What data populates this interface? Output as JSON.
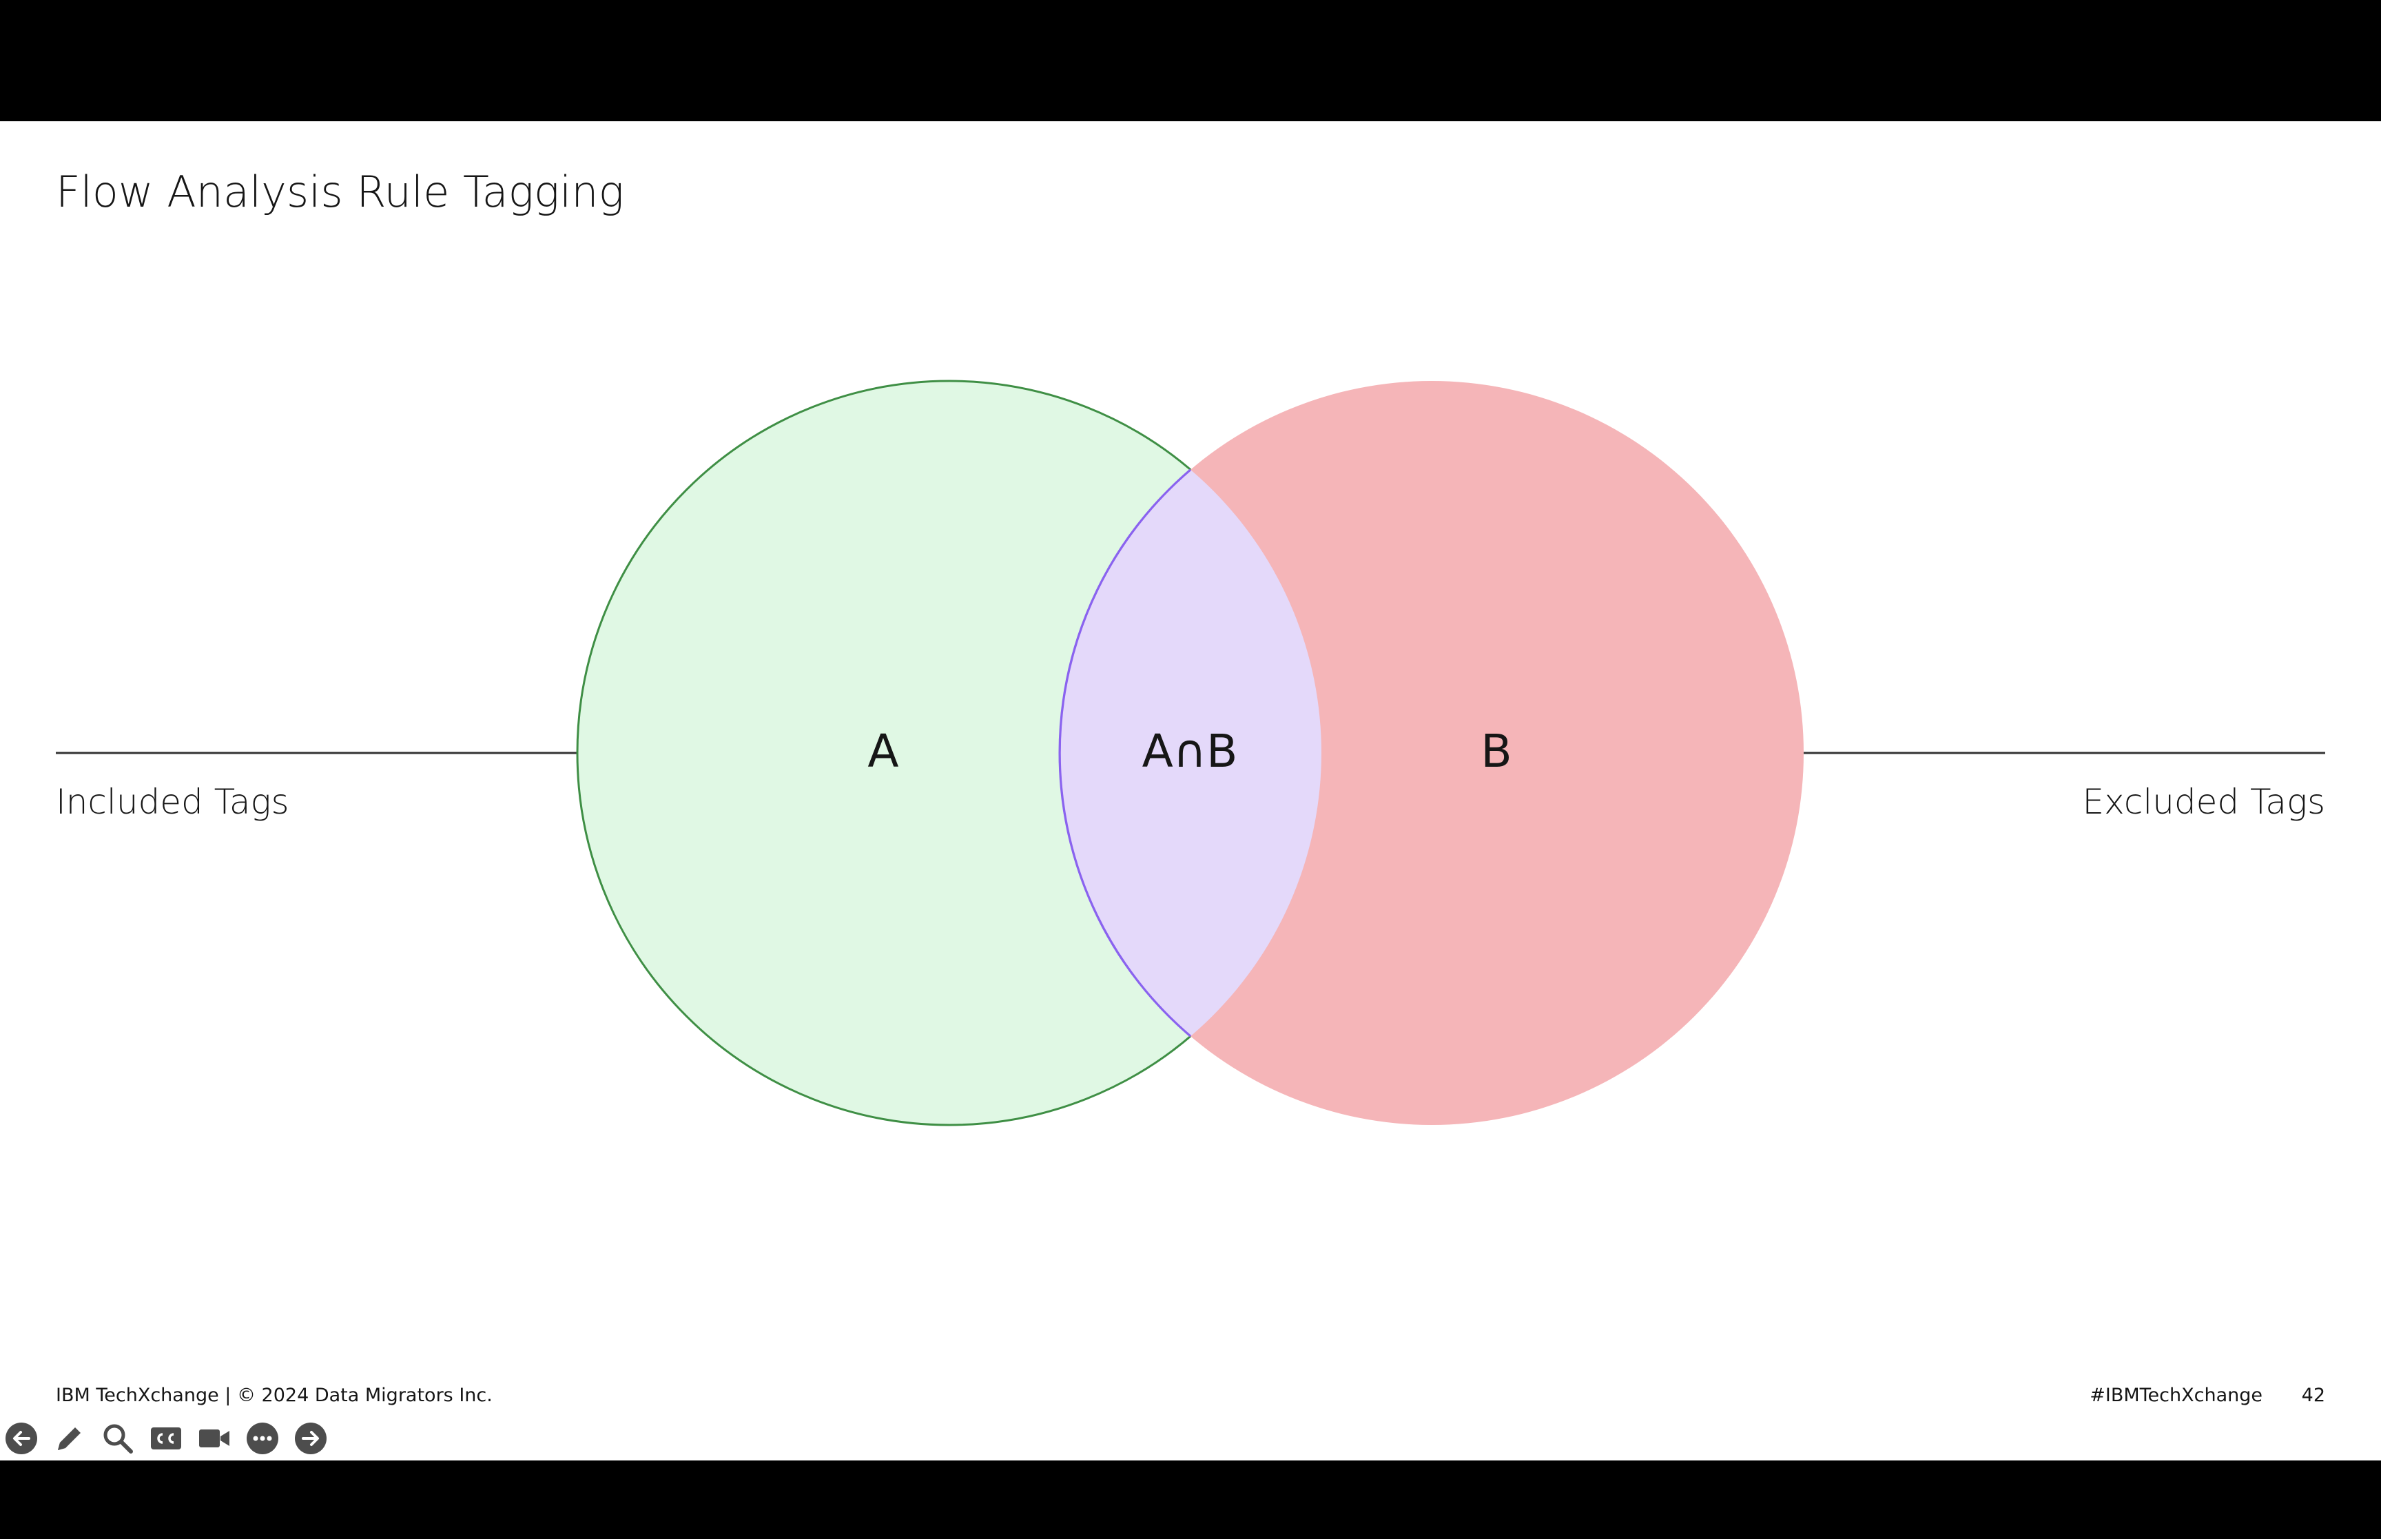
{
  "slide": {
    "title": "Flow Analysis Rule Tagging",
    "left_label": "Included Tags",
    "right_label": "Excluded Tags",
    "footer_left": "IBM TechXchange | © 2024 Data Migrators Inc.",
    "footer_hashtag": "#IBMTechXchange",
    "page_number": "42"
  },
  "venn": {
    "set_a_label": "A",
    "set_b_label": "B",
    "intersection_label": "A∩B",
    "colors": {
      "set_a_fill": "#e0f8e4",
      "set_a_stroke": "#3f8f45",
      "set_b_fill": "#f5b5b8",
      "intersection_fill": "#e4d9fa",
      "intersection_stroke": "#8a63ef",
      "line": "#333333"
    }
  },
  "toolbar": {
    "icons": [
      "previous-slide-icon",
      "pen-icon",
      "zoom-icon",
      "captions-icon",
      "camera-icon",
      "more-options-icon",
      "next-slide-icon"
    ]
  }
}
